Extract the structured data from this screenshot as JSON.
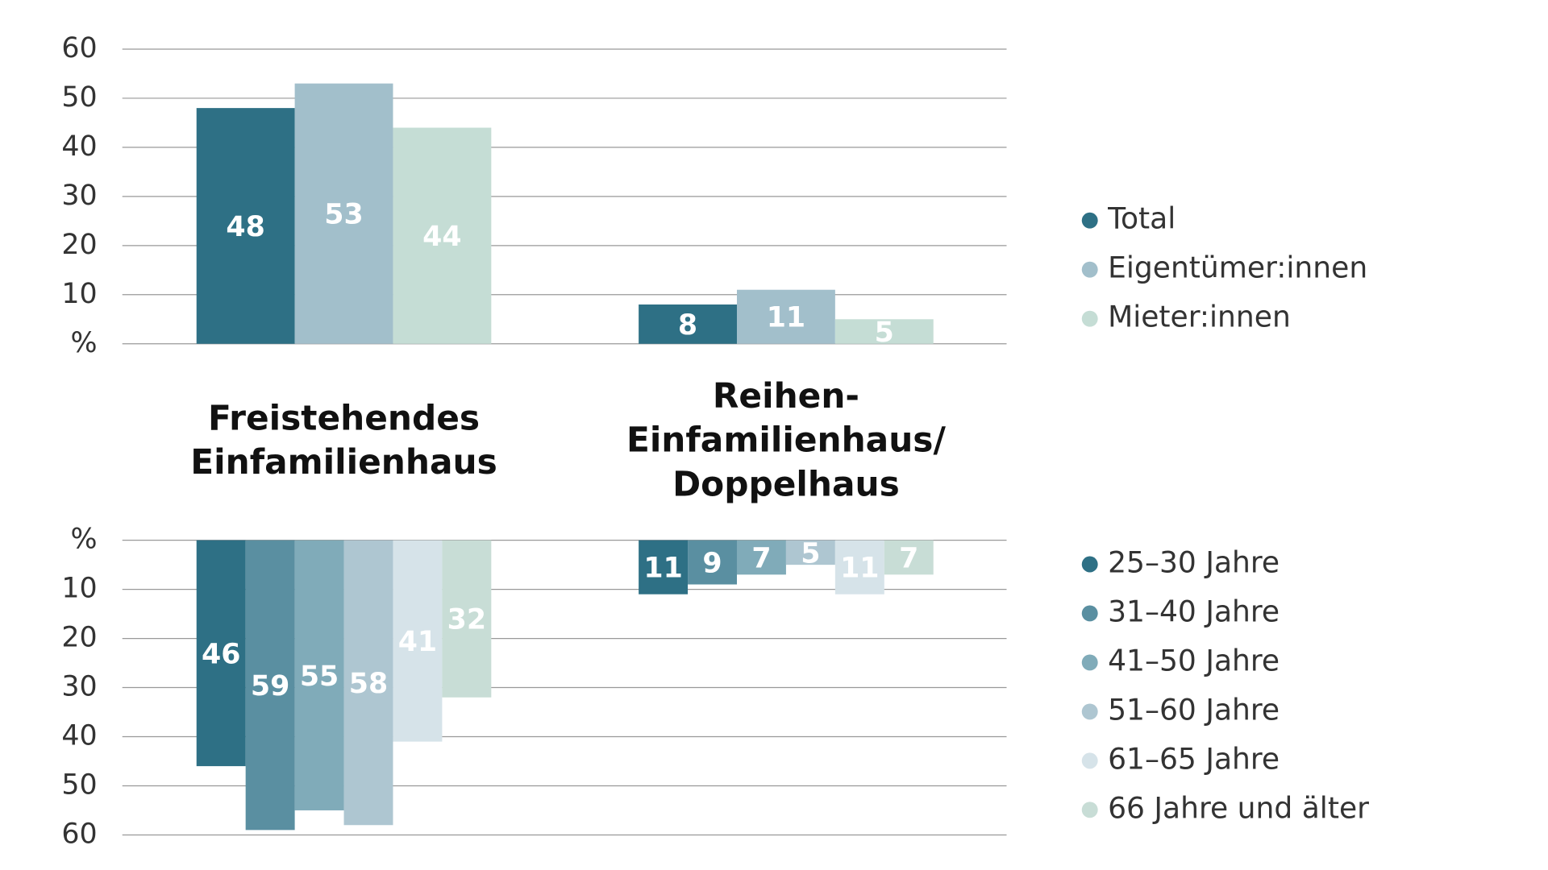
{
  "chart_data": [
    {
      "type": "bar",
      "categories": [
        "Freistehendes\nEinfamilienhaus",
        "Reihen-\nEinfamilienhaus/\nDoppelhaus"
      ],
      "series": [
        {
          "name": "Total",
          "color": "#2e7085",
          "values": [
            48,
            8
          ]
        },
        {
          "name": "Eigentümer:innen",
          "color": "#a2bfcb",
          "values": [
            53,
            11
          ]
        },
        {
          "name": "Mieter:innen",
          "color": "#c5ddd5",
          "values": [
            44,
            5
          ]
        }
      ],
      "ylim": [
        0,
        60
      ],
      "yticks": [
        {
          "value": 0,
          "label": "%"
        },
        10,
        20,
        30,
        40,
        50,
        60
      ],
      "grid": true,
      "inverted": false
    },
    {
      "type": "bar",
      "series": [
        {
          "name": "25–30 Jahre",
          "color": "#2e7085",
          "values": [
            46,
            11
          ]
        },
        {
          "name": "31–40 Jahre",
          "color": "#5a8fa1",
          "values": [
            59,
            9
          ]
        },
        {
          "name": "41–50 Jahre",
          "color": "#80abb9",
          "values": [
            55,
            7
          ]
        },
        {
          "name": "51–60 Jahre",
          "color": "#aec6d1",
          "values": [
            58,
            5
          ]
        },
        {
          "name": "61–65 Jahre",
          "color": "#d6e3e9",
          "values": [
            41,
            11
          ]
        },
        {
          "name": "66 Jahre und älter",
          "color": "#c8ddd6",
          "values": [
            32,
            7
          ]
        }
      ],
      "ylim": [
        0,
        60
      ],
      "yticks": [
        {
          "value": 0,
          "label": "%"
        },
        10,
        20,
        30,
        40,
        50,
        60
      ],
      "grid": true,
      "inverted": true
    }
  ]
}
